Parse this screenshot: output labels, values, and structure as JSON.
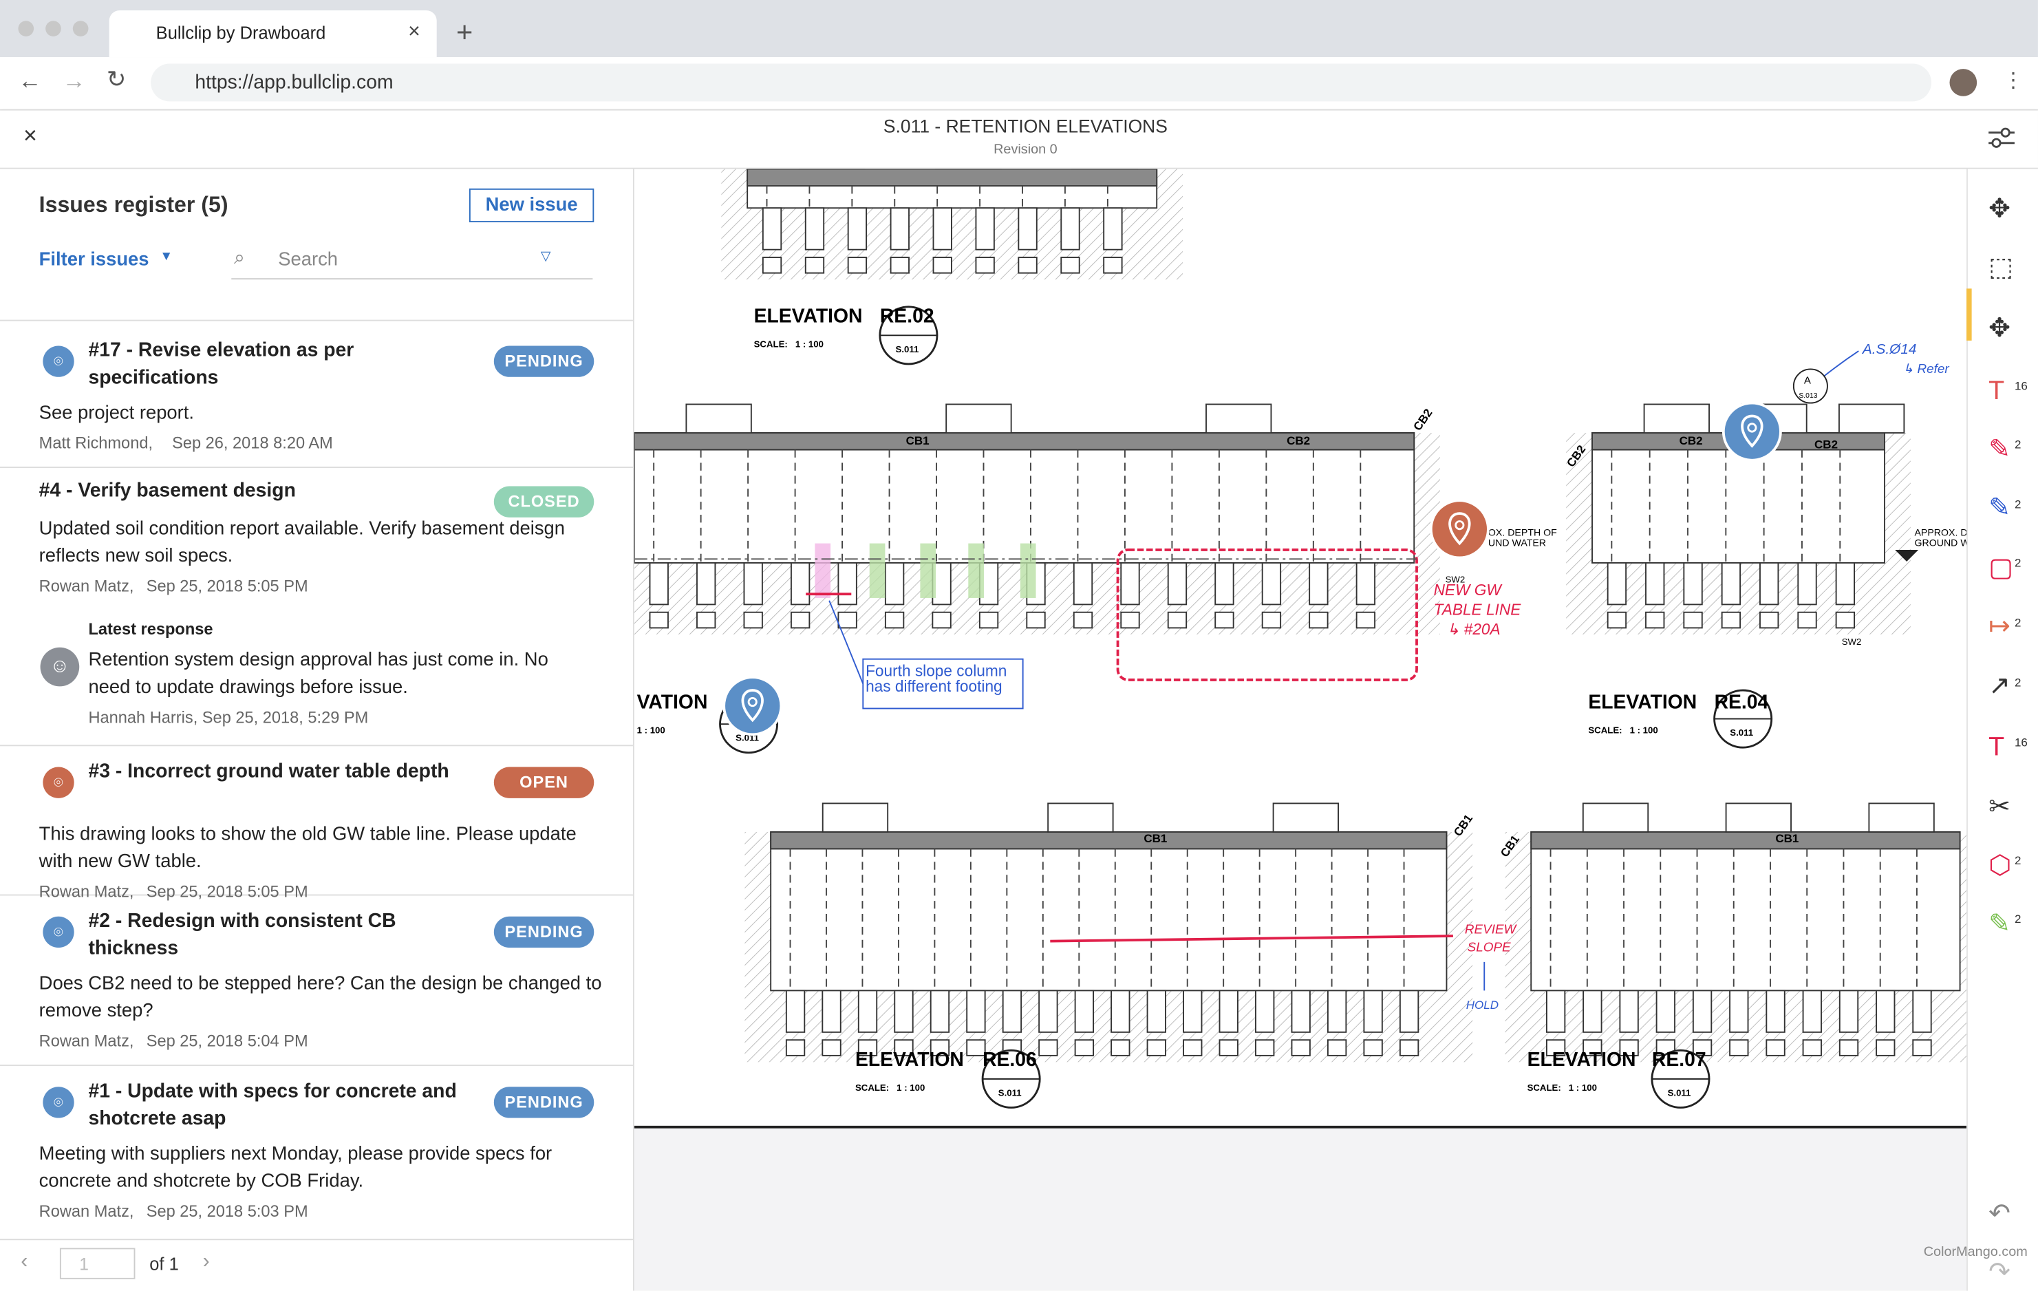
{
  "browser": {
    "tab_title": "Bullclip by Drawboard",
    "url": "https://app.bullclip.com"
  },
  "header": {
    "title": "S.011 - RETENTION ELEVATIONS",
    "subtitle": "Revision 0"
  },
  "sidebar": {
    "title": "Issues register (5)",
    "new_issue": "New issue",
    "filter": "Filter issues",
    "search": "Search",
    "issues": [
      {
        "title": "#17 - Revise elevation as per specifications",
        "status": "PENDING",
        "body": "See project report.",
        "author": "Matt Richmond,",
        "date": "Sep 26, 2018 8:20 AM"
      },
      {
        "title": "#4 - Verify basement design",
        "status": "CLOSED",
        "body": "Updated soil condition report available. Verify basement deisgn reflects new soil specs.",
        "author": "Rowan Matz,",
        "date": "Sep 25, 2018 5:05 PM",
        "response": {
          "heading": "Latest response",
          "body": "Retention system design approval has just come in. No need to update drawings before issue.",
          "author": "Hannah Harris, Sep 25, 2018, 5:29 PM"
        }
      },
      {
        "title": "#3 - Incorrect ground water table depth",
        "status": "OPEN",
        "body": "This drawing looks to show the old GW table line. Please update with new GW table.",
        "author": "Rowan Matz,",
        "date": "Sep 25, 2018 5:05 PM"
      },
      {
        "title": "#2 - Redesign with consistent CB thickness",
        "status": "PENDING",
        "body": "Does CB2 need to be stepped here? Can the design be changed to remove step?",
        "author": "Rowan Matz,",
        "date": "Sep 25, 2018 5:04 PM"
      },
      {
        "title": "#1 - Update with specs for concrete and shotcrete asap",
        "status": "PENDING",
        "body": "Meeting with suppliers next Monday, please provide specs for concrete and shotcrete by COB Friday.",
        "author": "Rowan Matz,",
        "date": "Sep 25, 2018 5:03 PM"
      }
    ],
    "pagination": {
      "page": "1",
      "of": "of 1"
    }
  },
  "drawing": {
    "elevations": [
      {
        "title": "ELEVATION",
        "ref": "RE.02",
        "scale": "SCALE:   1 : 100",
        "sheet": "S.011"
      },
      {
        "title": "VATION",
        "scale": "1 : 100",
        "sheet": "S.011"
      },
      {
        "title": "ELEVATION",
        "ref": "RE.04",
        "scale": "SCALE:   1 : 100",
        "sheet": "S.011"
      },
      {
        "title": "ELEVATION",
        "ref": "RE.06",
        "scale": "SCALE:   1 : 100",
        "sheet": "S.011"
      },
      {
        "title": "ELEVATION",
        "ref": "RE.07",
        "scale": "SCALE:   1 : 100",
        "sheet": "S.011"
      }
    ],
    "beams": [
      "CB1",
      "CB2",
      "CB2",
      "CB2",
      "CB2",
      "CB2",
      "CB1",
      "CB1",
      "CB1",
      "CB1"
    ],
    "notes": {
      "footing": [
        "Fourth slope column",
        "has different footing"
      ],
      "gw": [
        "NEW GW",
        "TABLE LINE",
        "↳ #20A"
      ],
      "review": [
        "REVIEW",
        "SLOPE"
      ],
      "hold": "HOLD",
      "refer": [
        "A.S.Ø14",
        "↳ Refer"
      ],
      "depth1": [
        "OX. DEPTH OF",
        "UND WATER"
      ],
      "depth2": [
        "APPROX. D",
        "GROUND W"
      ],
      "sw": [
        "SW2",
        "SW2"
      ],
      "detail": [
        "A",
        "S.013"
      ]
    }
  },
  "toolbar": {
    "counts": [
      "16",
      "2",
      "2",
      "2",
      "2",
      "2",
      "16",
      "2",
      "2"
    ]
  },
  "watermark": "ColorMango.com"
}
